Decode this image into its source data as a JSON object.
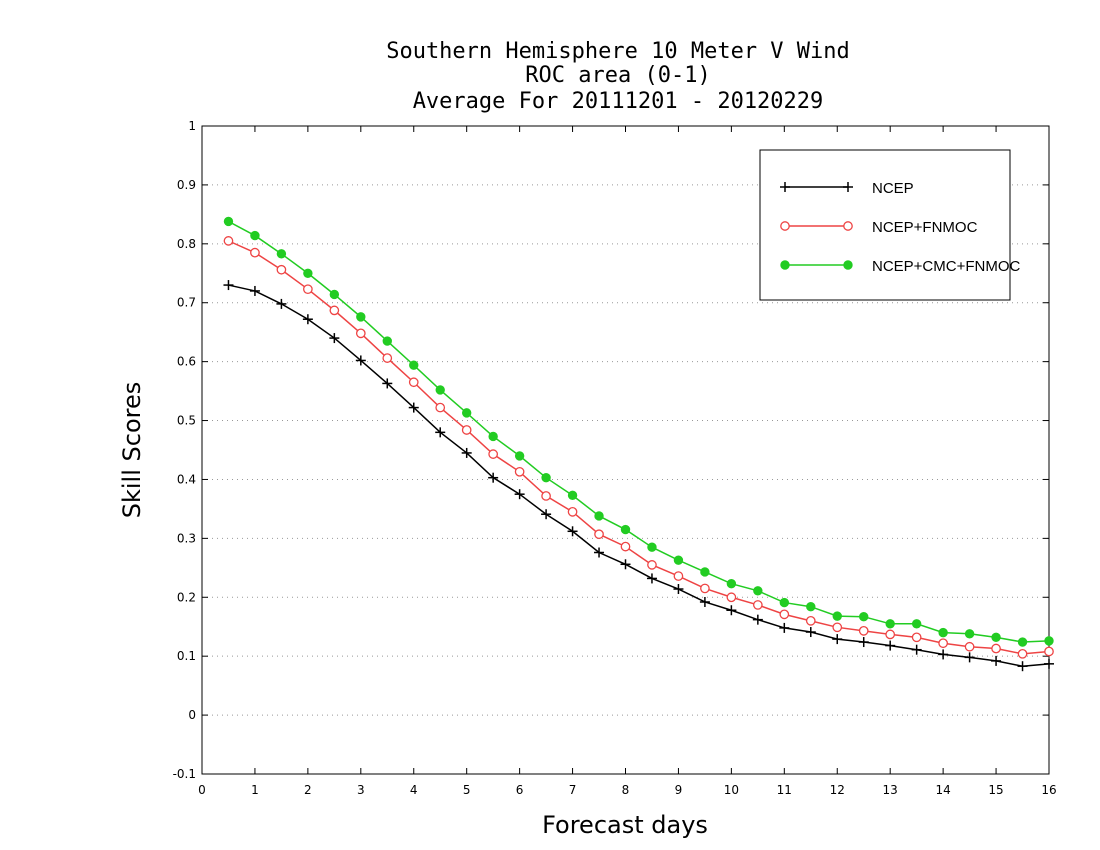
{
  "chart_data": {
    "type": "line",
    "title": [
      "Southern Hemisphere 10 Meter V Wind",
      "ROC area (0-1)",
      "Average For 20111201 - 20120229"
    ],
    "xlabel": "Forecast days",
    "ylabel": "Skill Scores",
    "xlim": [
      0,
      16
    ],
    "ylim": [
      -0.1,
      1
    ],
    "xticks": [
      "0",
      "1",
      "2",
      "3",
      "4",
      "5",
      "6",
      "7",
      "8",
      "9",
      "10",
      "11",
      "12",
      "13",
      "14",
      "15",
      "16"
    ],
    "yticks": [
      "-0.1",
      "0",
      "0.1",
      "0.2",
      "0.3",
      "0.4",
      "0.5",
      "0.6",
      "0.7",
      "0.8",
      "0.9",
      "1"
    ],
    "grid": true,
    "legend_position": "top-right",
    "x": [
      0.5,
      1,
      1.5,
      2,
      2.5,
      3,
      3.5,
      4,
      4.5,
      5,
      5.5,
      6,
      6.5,
      7,
      7.5,
      8,
      8.5,
      9,
      9.5,
      10,
      10.5,
      11,
      11.5,
      12,
      12.5,
      13,
      13.5,
      14,
      14.5,
      15,
      15.5,
      16
    ],
    "series": [
      {
        "name": "NCEP",
        "color": "#000000",
        "marker": "plus",
        "values": [
          0.73,
          0.72,
          0.698,
          0.672,
          0.64,
          0.602,
          0.563,
          0.522,
          0.48,
          0.445,
          0.403,
          0.375,
          0.341,
          0.312,
          0.276,
          0.256,
          0.232,
          0.214,
          0.192,
          0.178,
          0.162,
          0.148,
          0.141,
          0.129,
          0.124,
          0.118,
          0.111,
          0.103,
          0.098,
          0.092,
          0.083,
          0.087
        ]
      },
      {
        "name": "NCEP+FNMOC",
        "color": "#ee4444",
        "marker": "open-circle",
        "values": [
          0.805,
          0.785,
          0.756,
          0.723,
          0.687,
          0.648,
          0.606,
          0.565,
          0.522,
          0.484,
          0.443,
          0.413,
          0.372,
          0.345,
          0.307,
          0.286,
          0.255,
          0.236,
          0.215,
          0.2,
          0.187,
          0.171,
          0.16,
          0.149,
          0.143,
          0.137,
          0.132,
          0.122,
          0.116,
          0.113,
          0.104,
          0.108
        ]
      },
      {
        "name": "NCEP+CMC+FNMOC",
        "color": "#22cc22",
        "marker": "filled-circle",
        "values": [
          0.838,
          0.814,
          0.783,
          0.75,
          0.714,
          0.676,
          0.635,
          0.594,
          0.552,
          0.513,
          0.473,
          0.44,
          0.403,
          0.373,
          0.338,
          0.315,
          0.285,
          0.263,
          0.243,
          0.223,
          0.211,
          0.191,
          0.184,
          0.168,
          0.167,
          0.155,
          0.155,
          0.14,
          0.138,
          0.132,
          0.124,
          0.126
        ]
      }
    ]
  }
}
